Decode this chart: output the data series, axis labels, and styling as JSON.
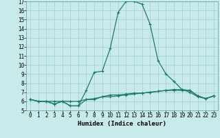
{
  "xlabel": "Humidex (Indice chaleur)",
  "xlim": [
    -0.5,
    23.5
  ],
  "ylim": [
    5,
    17
  ],
  "yticks": [
    5,
    6,
    7,
    8,
    9,
    10,
    11,
    12,
    13,
    14,
    15,
    16,
    17
  ],
  "xticks": [
    0,
    1,
    2,
    3,
    4,
    5,
    6,
    7,
    8,
    9,
    10,
    11,
    12,
    13,
    14,
    15,
    16,
    17,
    18,
    19,
    20,
    21,
    22,
    23
  ],
  "background_color": "#c8eaea",
  "grid_color": "#a8d4d4",
  "line_color": "#1a7a6e",
  "curve1_x": [
    0,
    1,
    2,
    3,
    4,
    5,
    6,
    7,
    8,
    9,
    10,
    11,
    12,
    13,
    14,
    15,
    16,
    17,
    18,
    19,
    20,
    21,
    22,
    23
  ],
  "curve1_y": [
    6.2,
    6.0,
    6.0,
    5.7,
    6.0,
    5.5,
    5.5,
    7.2,
    9.2,
    9.3,
    11.8,
    15.8,
    17.0,
    17.0,
    16.7,
    14.5,
    10.5,
    9.0,
    8.2,
    7.3,
    7.0,
    6.5,
    6.3,
    6.6
  ],
  "curve2_x": [
    0,
    1,
    2,
    3,
    4,
    5,
    6,
    7,
    8,
    9,
    10,
    11,
    12,
    13,
    14,
    15,
    16,
    17,
    18,
    19,
    20,
    21,
    22,
    23
  ],
  "curve2_y": [
    6.2,
    6.0,
    6.0,
    5.7,
    6.0,
    5.5,
    5.5,
    6.2,
    6.3,
    6.5,
    6.5,
    6.6,
    6.7,
    6.8,
    6.9,
    7.0,
    7.1,
    7.2,
    7.3,
    7.3,
    7.2,
    6.6,
    6.3,
    6.6
  ],
  "curve3_x": [
    0,
    1,
    2,
    3,
    4,
    5,
    6,
    7,
    8,
    9,
    10,
    11,
    12,
    13,
    14,
    15,
    16,
    17,
    18,
    19,
    20,
    21,
    22,
    23
  ],
  "curve3_y": [
    6.2,
    6.0,
    6.0,
    6.0,
    6.0,
    6.0,
    6.0,
    6.2,
    6.2,
    6.5,
    6.7,
    6.7,
    6.8,
    6.9,
    6.9,
    7.0,
    7.1,
    7.2,
    7.2,
    7.2,
    7.2,
    6.6,
    6.3,
    6.6
  ]
}
